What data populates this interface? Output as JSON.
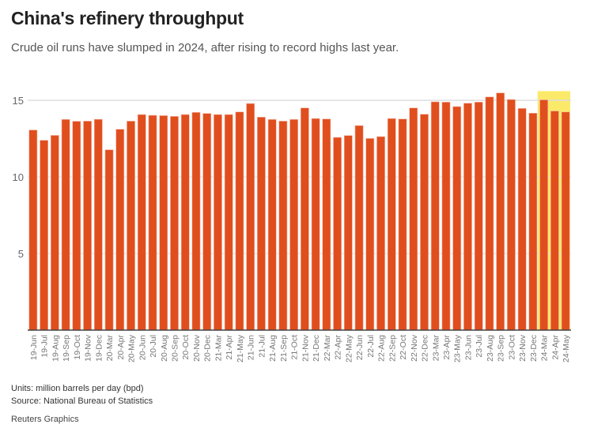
{
  "title": "China's refinery throughput",
  "subtitle": "Crude oil runs have slumped in 2024, after rising to record highs last year.",
  "footer": {
    "units": "Units: million barrels per day (bpd)",
    "source": "Source: National Bureau of Statistics",
    "credit": "Reuters Graphics"
  },
  "colors": {
    "bar": "#e04e1e",
    "highlight": "#fbe96a",
    "grid": "#dddddd",
    "axis": "#444444"
  },
  "chart_data": {
    "type": "bar",
    "title": "China's refinery throughput",
    "xlabel": "",
    "ylabel": "million barrels per day (bpd)",
    "ylim": [
      0,
      15.6
    ],
    "yticks": [
      5,
      10,
      15
    ],
    "grid": true,
    "highlight": [
      "24-Mar",
      "24-Apr",
      "24-May"
    ],
    "categories": [
      "19-Jun",
      "19-Jul",
      "19-Aug",
      "19-Sep",
      "19-Oct",
      "19-Nov",
      "19-Dec",
      "20-Mar",
      "20-Apr",
      "20-May",
      "20-Jun",
      "20-Jul",
      "20-Aug",
      "20-Sep",
      "20-Oct",
      "20-Nov",
      "20-Dec",
      "21-Mar",
      "21-Apr",
      "21-May",
      "21-Jun",
      "21-Jul",
      "21-Aug",
      "21-Sep",
      "21-Oct",
      "21-Nov",
      "21-Dec",
      "22-Mar",
      "22-Apr",
      "22-May",
      "22-Jun",
      "22-Jul",
      "22-Aug",
      "22-Sep",
      "22-Oct",
      "22-Nov",
      "22-Dec",
      "23-Mar",
      "23-Apr",
      "23-May",
      "23-Jun",
      "23-Jul",
      "23-Aug",
      "23-Sep",
      "23-Oct",
      "23-Nov",
      "23-Dec",
      "24-Mar",
      "24-Apr",
      "24-May"
    ],
    "values": [
      13.06,
      12.39,
      12.71,
      13.75,
      13.63,
      13.64,
      13.76,
      11.77,
      13.11,
      13.64,
      14.07,
      14.02,
      14.0,
      13.95,
      14.07,
      14.21,
      14.14,
      14.07,
      14.07,
      14.24,
      14.79,
      13.9,
      13.75,
      13.64,
      13.75,
      14.5,
      13.81,
      13.78,
      12.58,
      12.7,
      13.35,
      12.51,
      12.63,
      13.81,
      13.78,
      14.5,
      14.09,
      14.9,
      14.88,
      14.59,
      14.81,
      14.88,
      15.22,
      15.48,
      15.05,
      14.47,
      14.16,
      15.03,
      14.3,
      14.24
    ]
  }
}
